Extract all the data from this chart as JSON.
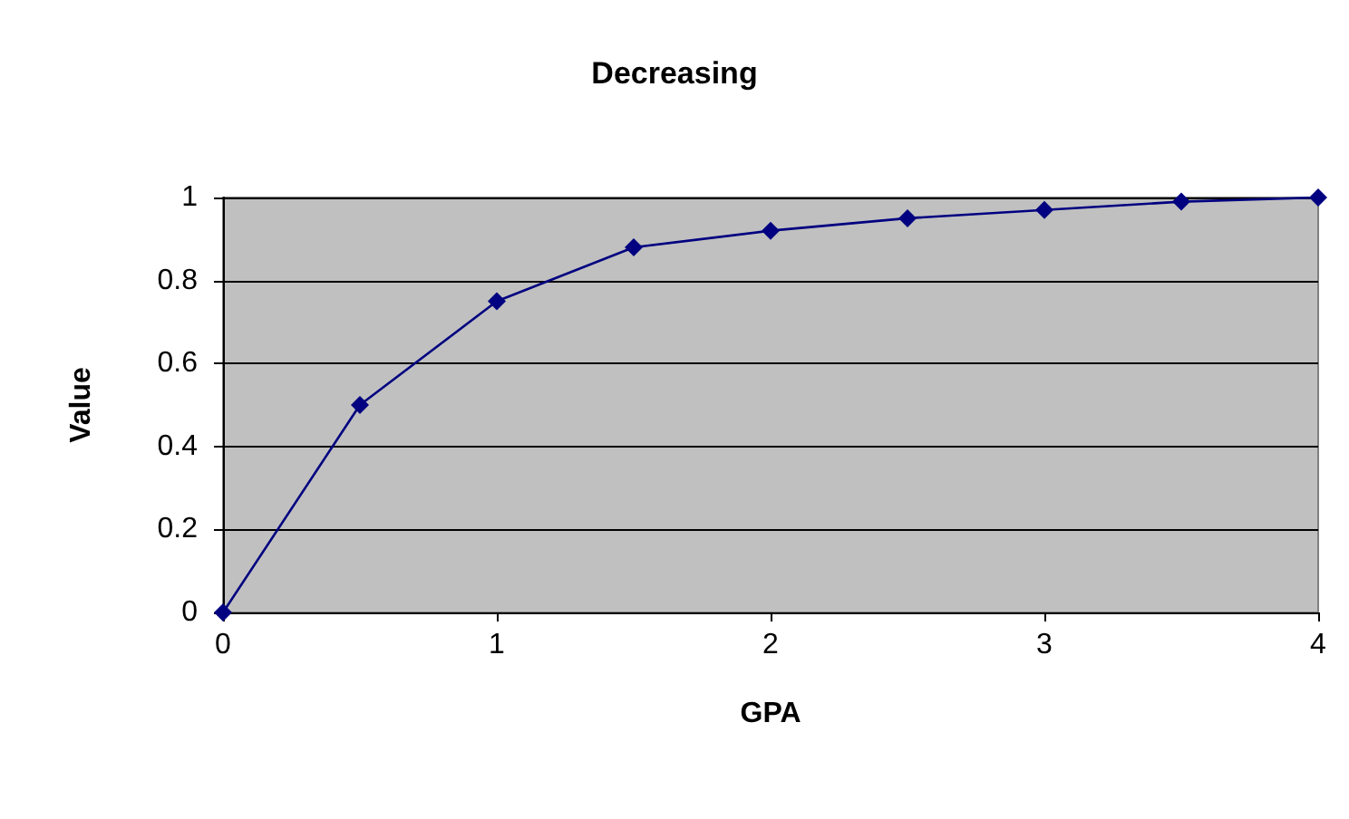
{
  "chart_data": {
    "type": "line",
    "title": "Decreasing",
    "xlabel": "GPA",
    "ylabel": "Value",
    "x": [
      0,
      0.5,
      1,
      1.5,
      2,
      2.5,
      3,
      3.5,
      4
    ],
    "series": [
      {
        "color": "#000080",
        "values": [
          0,
          0.5,
          0.75,
          0.88,
          0.92,
          0.95,
          0.97,
          0.99,
          1
        ]
      }
    ],
    "xlim": [
      0,
      4
    ],
    "xticks": [
      0,
      1,
      2,
      3,
      4
    ],
    "ylim": [
      0,
      1
    ],
    "yticks": [
      0,
      0.2,
      0.4,
      0.6,
      0.8,
      1
    ],
    "grid": "y",
    "marker": "diamond",
    "line_style": "solid"
  }
}
